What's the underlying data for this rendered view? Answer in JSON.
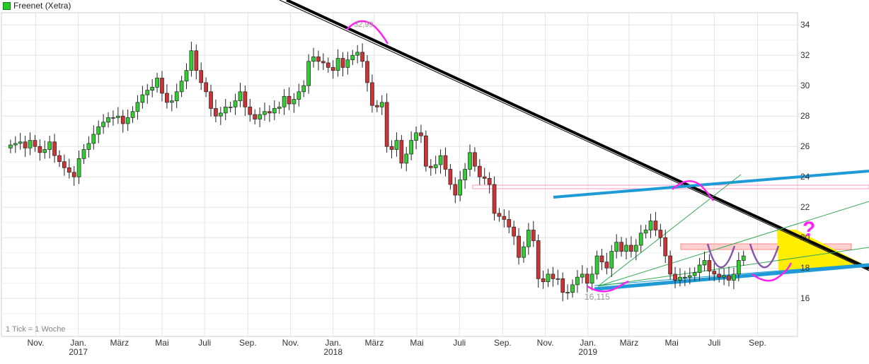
{
  "chart_title": "Freenet (Xetra)",
  "tick_note": "1 Tick = 1 Woche",
  "annotations": {
    "high_label": "32,99",
    "low_label": "16,115",
    "question_mark": "?"
  },
  "colors": {
    "up_candle": "#33cc33",
    "down_candle": "#cc3333",
    "trendline_main": "#000000",
    "trendline_blue": "#1e9bd7",
    "marker_magenta": "#ff22ee",
    "marker_purple": "#8855aa",
    "zone_yellow": "#ffee00",
    "zone_red": "#ff8888"
  },
  "chart_data": {
    "type": "candlestick",
    "title": "Freenet (Xetra)",
    "ylim": [
      13.5,
      34.8
    ],
    "y_ticks": [
      16,
      18,
      20,
      22,
      24,
      26,
      28,
      30,
      32,
      34
    ],
    "grid": true,
    "x_month_labels": [
      {
        "label": "Nov.",
        "date": "2016-11-01"
      },
      {
        "label": "Jan.",
        "date": "2017-01-01"
      },
      {
        "label": "März",
        "date": "2017-03-01"
      },
      {
        "label": "Mai",
        "date": "2017-05-01"
      },
      {
        "label": "Juli",
        "date": "2017-07-01"
      },
      {
        "label": "Sep.",
        "date": "2017-09-01"
      },
      {
        "label": "Nov.",
        "date": "2017-11-01"
      },
      {
        "label": "Jan.",
        "date": "2018-01-01"
      },
      {
        "label": "März",
        "date": "2018-03-01"
      },
      {
        "label": "Mai",
        "date": "2018-05-01"
      },
      {
        "label": "Juli",
        "date": "2018-07-01"
      },
      {
        "label": "Sep.",
        "date": "2018-09-01"
      },
      {
        "label": "Nov.",
        "date": "2018-11-01"
      },
      {
        "label": "Jan.",
        "date": "2019-01-01"
      },
      {
        "label": "März",
        "date": "2019-03-01"
      },
      {
        "label": "Mai",
        "date": "2019-05-01"
      },
      {
        "label": "Juli",
        "date": "2019-07-01"
      },
      {
        "label": "Sep.",
        "date": "2019-09-01"
      }
    ],
    "x_year_labels": [
      {
        "label": "2017",
        "date": "2017-01-01"
      },
      {
        "label": "2018",
        "date": "2018-01-01"
      },
      {
        "label": "2019",
        "date": "2019-01-01"
      }
    ],
    "weekly_close": [
      26.1,
      26.2,
      26.3,
      25.9,
      26.4,
      26.0,
      25.6,
      25.8,
      26.3,
      25.4,
      25.0,
      24.6,
      24.3,
      24.0,
      25.2,
      25.8,
      26.2,
      26.8,
      27.3,
      27.6,
      27.9,
      27.9,
      28.0,
      27.5,
      27.9,
      28.3,
      28.9,
      29.4,
      29.7,
      29.9,
      30.5,
      29.5,
      28.9,
      29.0,
      29.6,
      30.3,
      31.0,
      32.3,
      31.0,
      30.2,
      29.6,
      28.5,
      28.0,
      28.2,
      28.6,
      28.6,
      29.0,
      29.6,
      28.6,
      28.1,
      27.8,
      28.1,
      28.3,
      28.2,
      28.5,
      28.6,
      29.3,
      28.8,
      29.1,
      29.6,
      30.0,
      31.6,
      31.9,
      31.6,
      31.5,
      31.2,
      31.0,
      31.8,
      31.2,
      31.7,
      32.0,
      32.2,
      31.6,
      30.2,
      28.7,
      28.6,
      28.9,
      26.0,
      25.8,
      26.4,
      24.9,
      25.5,
      26.4,
      26.9,
      26.7,
      24.7,
      24.6,
      24.8,
      25.4,
      24.5,
      23.5,
      22.8,
      23.8,
      24.5,
      25.6,
      24.7,
      24.0,
      23.9,
      23.5,
      21.6,
      21.4,
      21.2,
      20.7,
      20.1,
      18.7,
      19.4,
      20.5,
      19.8,
      17.3,
      17.1,
      17.6,
      17.3,
      17.3,
      16.4,
      16.4,
      16.9,
      17.4,
      17.6,
      17.0,
      17.6,
      18.8,
      18.4,
      18.0,
      19.1,
      19.7,
      19.1,
      19.5,
      19.1,
      19.5,
      20.3,
      20.5,
      21.1,
      20.5,
      20.0,
      18.8,
      17.6,
      17.2,
      17.4,
      17.4,
      17.5,
      17.7,
      18.2,
      18.5,
      17.8,
      17.6,
      17.4,
      17.5,
      17.2,
      17.6,
      18.5,
      18.8
    ],
    "notable_values": {
      "high": 32.99,
      "low": 16.115
    }
  }
}
